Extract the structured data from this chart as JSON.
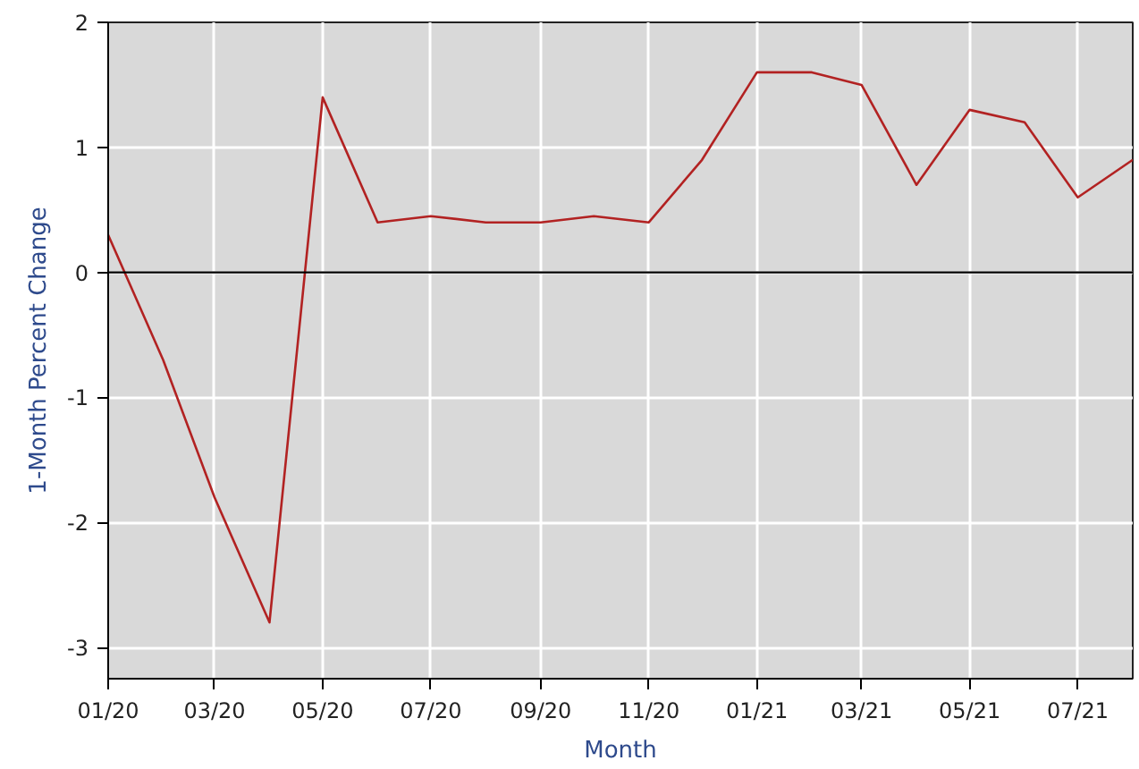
{
  "chart_data": {
    "type": "line",
    "xlabel": "Month",
    "ylabel": "1-Month Percent Change",
    "x": [
      "2020-01",
      "2020-02",
      "2020-03",
      "2020-04",
      "2020-05",
      "2020-06",
      "2020-07",
      "2020-08",
      "2020-09",
      "2020-10",
      "2020-11",
      "2020-12",
      "2021-01",
      "2021-02",
      "2021-03",
      "2021-04",
      "2021-05",
      "2021-06",
      "2021-07",
      "2021-08"
    ],
    "series": [
      {
        "color": "#b22222",
        "values": [
          0.3,
          -0.7,
          -1.8,
          -2.8,
          1.4,
          0.4,
          0.45,
          0.4,
          0.4,
          0.45,
          0.4,
          0.9,
          1.6,
          1.6,
          1.5,
          0.7,
          1.3,
          1.2,
          0.6,
          0.9
        ]
      }
    ],
    "xlim": [
      "2020-01",
      "2021-08"
    ],
    "xticks": [
      {
        "value": "2020-01",
        "label": "01/20"
      },
      {
        "value": "2020-03",
        "label": "03/20"
      },
      {
        "value": "2020-05",
        "label": "05/20"
      },
      {
        "value": "2020-07",
        "label": "07/20"
      },
      {
        "value": "2020-09",
        "label": "09/20"
      },
      {
        "value": "2020-11",
        "label": "11/20"
      },
      {
        "value": "2021-01",
        "label": "01/21"
      },
      {
        "value": "2021-03",
        "label": "03/21"
      },
      {
        "value": "2021-05",
        "label": "05/21"
      },
      {
        "value": "2021-07",
        "label": "07/21"
      }
    ],
    "ylim": [
      -3.25,
      2
    ],
    "yticks": [
      -3,
      -2,
      -1,
      0,
      1,
      2
    ],
    "ref_lines": [
      {
        "axis": "y",
        "value": 0,
        "color": "#000000"
      }
    ],
    "grid": true,
    "marker": "none",
    "line_style": "solid"
  }
}
